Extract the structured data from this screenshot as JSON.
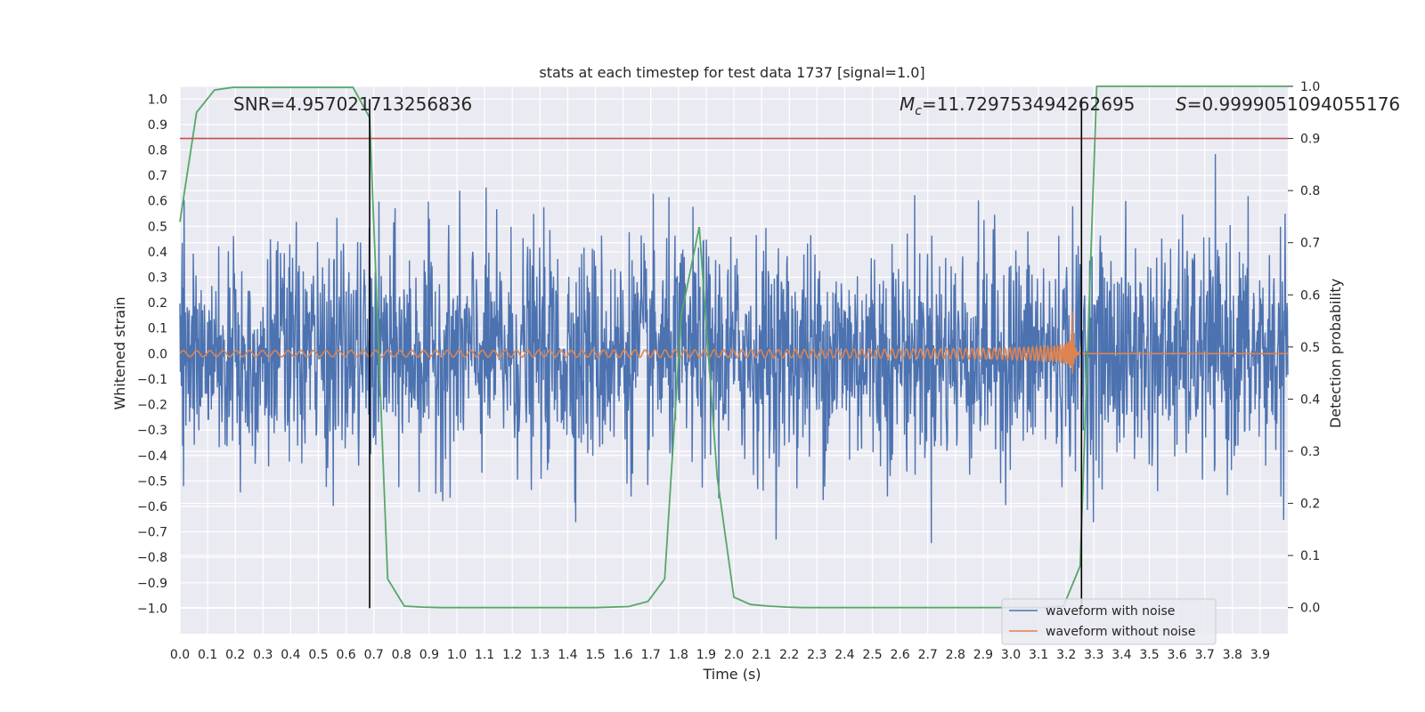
{
  "chart_data": {
    "type": "line",
    "title": "stats at each timestep for test data 1737 [signal=1.0]",
    "xlabel": "Time (s)",
    "ylabel_left": "Whitened strain",
    "ylabel_right": "Detection probability",
    "xlim": [
      0.0,
      4.0
    ],
    "ylim_left": [
      -1.1,
      1.05
    ],
    "ylim_right": [
      -0.05,
      1.0
    ],
    "x_ticks": [
      "0.0",
      "0.1",
      "0.2",
      "0.3",
      "0.4",
      "0.5",
      "0.6",
      "0.7",
      "0.8",
      "0.9",
      "1.0",
      "1.1",
      "1.2",
      "1.3",
      "1.4",
      "1.5",
      "1.6",
      "1.7",
      "1.8",
      "1.9",
      "2.0",
      "2.1",
      "2.2",
      "2.3",
      "2.4",
      "2.5",
      "2.6",
      "2.7",
      "2.8",
      "2.9",
      "3.0",
      "3.1",
      "3.2",
      "3.3",
      "3.4",
      "3.5",
      "3.6",
      "3.7",
      "3.8",
      "3.9"
    ],
    "y_ticks_left": [
      "1.0",
      "0.9",
      "0.8",
      "0.7",
      "0.6",
      "0.5",
      "0.4",
      "0.3",
      "0.2",
      "0.1",
      "0.0",
      "−0.1",
      "−0.2",
      "−0.3",
      "−0.4",
      "−0.5",
      "−0.6",
      "−0.7",
      "−0.8",
      "−0.9",
      "−1.0"
    ],
    "y_ticks_right": [
      "1.0",
      "0.9",
      "0.8",
      "0.7",
      "0.6",
      "0.5",
      "0.4",
      "0.3",
      "0.2",
      "0.1",
      "0.0"
    ],
    "annotations": {
      "snr": "SNR=4.957021713256836",
      "mc_symbol": "M",
      "mc_sub": "c",
      "mc_value": "=11.729753494262695",
      "s_symbol": "S",
      "s_value": "=0.9999051094055176"
    },
    "threshold": 0.9,
    "vertical_markers": [
      0.685,
      3.255
    ],
    "merger_time": 3.22,
    "series": [
      {
        "name": "waveform with noise",
        "color": "#4c72b0",
        "amplitude_std": 0.22,
        "seed": 1737
      },
      {
        "name": "waveform without noise",
        "color": "#dd8452"
      },
      {
        "name": "detection probability",
        "color": "#55a868",
        "x": [
          0.0,
          0.06,
          0.125,
          0.19,
          0.25,
          0.31,
          0.375,
          0.44,
          0.5,
          0.56,
          0.625,
          0.685,
          0.75,
          0.81,
          0.875,
          0.94,
          1.0,
          1.5,
          1.62,
          1.69,
          1.75,
          1.81,
          1.875,
          1.94,
          2.0,
          2.06,
          2.125,
          2.19,
          2.25,
          2.5,
          3.0,
          3.125,
          3.19,
          3.25,
          3.31,
          3.375,
          3.44,
          3.5,
          4.0
        ],
        "values": [
          0.74,
          0.95,
          0.993,
          0.998,
          0.998,
          0.998,
          0.998,
          0.998,
          0.998,
          0.998,
          0.998,
          0.94,
          0.055,
          0.003,
          0.001,
          0.0,
          0.0,
          0.0,
          0.002,
          0.012,
          0.055,
          0.56,
          0.73,
          0.25,
          0.02,
          0.006,
          0.003,
          0.001,
          0.0,
          0.0,
          0.0,
          0.0,
          0.003,
          0.08,
          1.0,
          1.0,
          1.0,
          1.0,
          1.0
        ]
      }
    ]
  },
  "legend": {
    "items": [
      {
        "label": "waveform with noise",
        "color": "#4c72b0"
      },
      {
        "label": "waveform without noise",
        "color": "#dd8452"
      }
    ]
  },
  "colors": {
    "axes_bg": "#eaeaf2",
    "grid": "#ffffff",
    "threshold": "#c44e52",
    "marker": "#000000"
  }
}
